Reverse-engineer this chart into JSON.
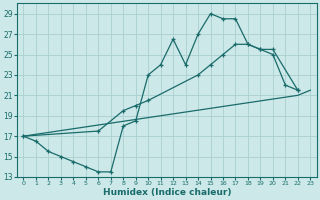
{
  "xlabel": "Humidex (Indice chaleur)",
  "bg_color": "#cce8e8",
  "grid_color": "#aad0d0",
  "line_color": "#1a6b6b",
  "xlim": [
    -0.5,
    23.5
  ],
  "ylim": [
    13,
    30
  ],
  "xticks": [
    0,
    1,
    2,
    3,
    4,
    5,
    6,
    7,
    8,
    9,
    10,
    11,
    12,
    13,
    14,
    15,
    16,
    17,
    18,
    19,
    20,
    21,
    22,
    23
  ],
  "yticks": [
    13,
    15,
    17,
    19,
    21,
    23,
    25,
    27,
    29
  ],
  "line1_x": [
    0,
    1,
    2,
    3,
    4,
    5,
    6,
    7,
    8,
    9,
    10,
    11,
    12,
    13,
    14,
    15,
    16,
    17,
    18,
    19,
    20,
    21,
    22
  ],
  "line1_y": [
    17,
    16.5,
    15.5,
    15,
    14.5,
    14,
    13.5,
    13.5,
    18,
    18.5,
    23,
    24,
    26.5,
    24,
    27,
    29,
    28.5,
    28.5,
    26,
    25.5,
    25,
    22,
    21.5
  ],
  "line2_x": [
    0,
    6,
    8,
    9,
    10,
    14,
    15,
    16,
    17,
    18,
    19,
    20,
    22
  ],
  "line2_y": [
    17,
    17.5,
    19.5,
    20,
    20.5,
    23,
    24,
    25,
    26,
    26,
    25.5,
    25.5,
    21.5
  ],
  "line3_x": [
    0,
    22,
    23
  ],
  "line3_y": [
    17,
    21,
    21.5
  ],
  "line3_no_marker": true
}
